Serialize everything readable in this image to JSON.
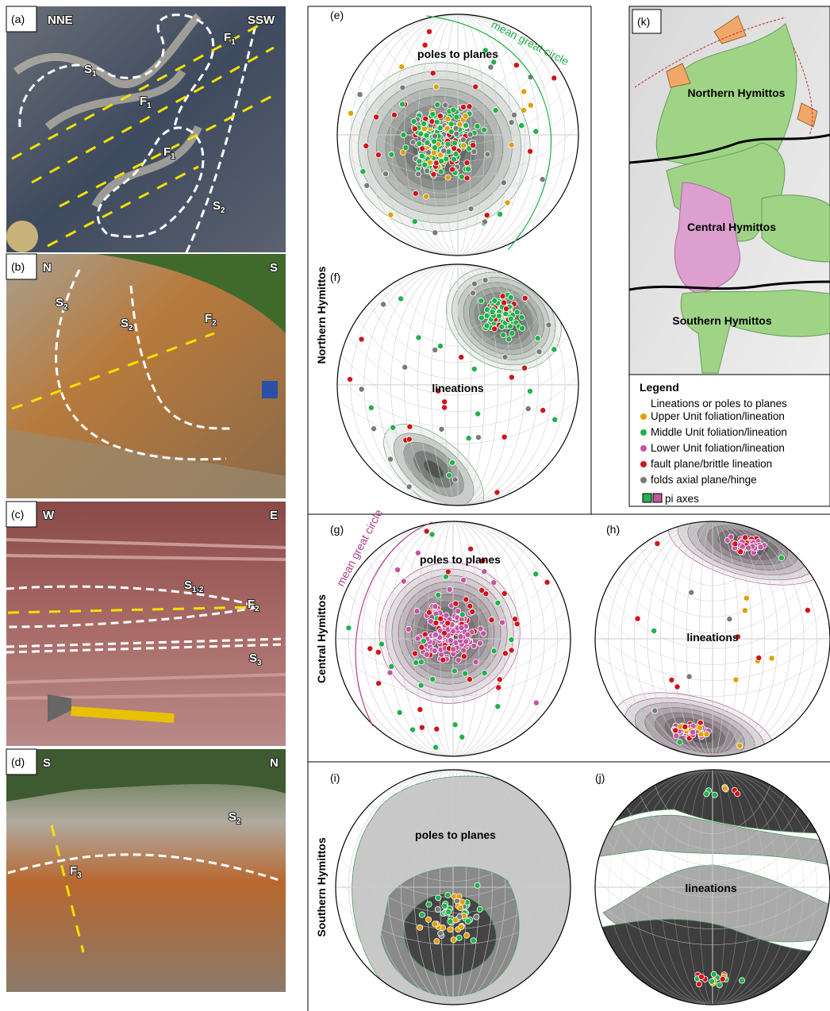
{
  "photos": {
    "a": {
      "label": "(a)",
      "directions": [
        "NNE",
        "SSW"
      ],
      "annotations": [
        {
          "main": "S",
          "sub": "1"
        },
        {
          "main": "F",
          "sub": "1"
        },
        {
          "main": "F",
          "sub": "1"
        },
        {
          "main": "F",
          "sub": "1"
        },
        {
          "main": "S",
          "sub": "2"
        }
      ]
    },
    "b": {
      "label": "(b)",
      "directions": [
        "N",
        "S"
      ],
      "annotations": [
        {
          "main": "S",
          "sub": "2"
        },
        {
          "main": "S",
          "sub": "2"
        },
        {
          "main": "F",
          "sub": "2"
        }
      ]
    },
    "c": {
      "label": "(c)",
      "directions": [
        "W",
        "E"
      ],
      "annotations": [
        {
          "main": "S",
          "sub": "1-2"
        },
        {
          "main": "F",
          "sub": "2"
        },
        {
          "main": "S",
          "sub": "3"
        }
      ]
    },
    "d": {
      "label": "(d)",
      "directions": [
        "S",
        "N"
      ],
      "annotations": [
        {
          "main": "S",
          "sub": "2"
        },
        {
          "main": "F",
          "sub": "3"
        }
      ]
    }
  },
  "stereonets": {
    "row_labels": [
      "Northern Hymittos",
      "Central Hymittos",
      "Southern Hymittos"
    ],
    "e": {
      "label": "(e)",
      "text": "poles to planes",
      "circle_label": "mean great circle"
    },
    "f": {
      "label": "(f)",
      "text": "lineations"
    },
    "g": {
      "label": "(g)",
      "text": "poles to planes",
      "circle_label": "mean great circle"
    },
    "h": {
      "label": "(h)",
      "text": "lineations"
    },
    "i": {
      "label": "(i)",
      "text": "poles to planes"
    },
    "j": {
      "label": "(j)",
      "text": "lineations"
    }
  },
  "map": {
    "label": "(k)",
    "areas": [
      "Northern Hymittos",
      "Central Hymittos",
      "Southern Hymittos"
    ]
  },
  "legend": {
    "title": "Legend",
    "subtitle": "Lineations or poles to planes",
    "items": [
      {
        "label": "Upper Unit foliation/lineation",
        "color": "#e0a100"
      },
      {
        "label": "Middle Unit foliation/lineation",
        "color": "#22b14c"
      },
      {
        "label": "Lower Unit foliation/lineation",
        "color": "#c2569f"
      },
      {
        "label": "fault plane/brittle lineation",
        "color": "#d0141a"
      },
      {
        "label": "folds axial plane/hinge",
        "color": "#7a7a7a"
      }
    ],
    "pi_axes": "pi axes"
  }
}
